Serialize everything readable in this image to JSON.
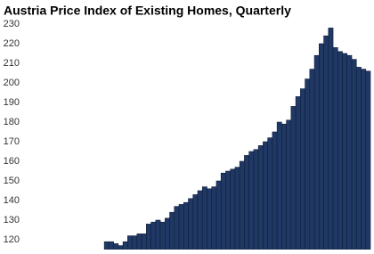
{
  "chart_data": {
    "type": "bar",
    "title": "Austria Price Index of Existing Homes, Quarterly",
    "categories": [
      null,
      null,
      null,
      null,
      null,
      null,
      null,
      null,
      null,
      null,
      null,
      null,
      null,
      null,
      null,
      null,
      null,
      null,
      null,
      null,
      null,
      null,
      null,
      null,
      null,
      null,
      null,
      null,
      null,
      null,
      null,
      null,
      null,
      null,
      null,
      null,
      null,
      null,
      null,
      null,
      null,
      null,
      null,
      null,
      null,
      null,
      null,
      null,
      null,
      null,
      null,
      null,
      null,
      null,
      null,
      null,
      null,
      null,
      null,
      null,
      null,
      null,
      null,
      null,
      null,
      null,
      null,
      null,
      null,
      null,
      null,
      null,
      null,
      null
    ],
    "values": [
      null,
      null,
      null,
      null,
      null,
      null,
      null,
      null,
      null,
      null,
      null,
      null,
      null,
      null,
      null,
      null,
      null,
      119,
      119,
      118,
      117,
      119,
      122,
      122,
      123,
      123,
      128,
      129,
      130,
      129,
      131,
      134,
      137,
      138,
      139,
      141,
      143,
      145,
      147,
      146,
      147,
      150,
      154,
      155,
      156,
      157,
      160,
      163,
      165,
      166,
      168,
      170,
      172,
      175,
      180,
      179,
      181,
      188,
      193,
      197,
      202,
      207,
      214,
      220,
      224,
      228,
      218,
      216,
      215,
      214,
      212,
      208,
      207,
      206
    ],
    "color": "#203864",
    "ylim": [
      115,
      230
    ],
    "yticks": [
      120,
      130,
      140,
      150,
      160,
      170,
      180,
      190,
      200,
      210,
      220,
      230
    ],
    "grid": false
  }
}
